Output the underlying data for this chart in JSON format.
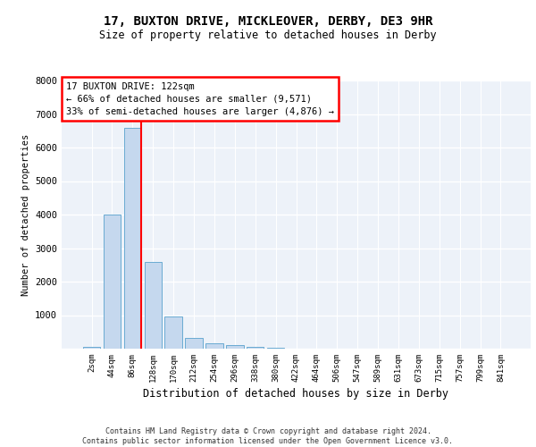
{
  "title1": "17, BUXTON DRIVE, MICKLEOVER, DERBY, DE3 9HR",
  "title2": "Size of property relative to detached houses in Derby",
  "xlabel": "Distribution of detached houses by size in Derby",
  "ylabel": "Number of detached properties",
  "bar_labels": [
    "2sqm",
    "44sqm",
    "86sqm",
    "128sqm",
    "170sqm",
    "212sqm",
    "254sqm",
    "296sqm",
    "338sqm",
    "380sqm",
    "422sqm",
    "464sqm",
    "506sqm",
    "547sqm",
    "589sqm",
    "631sqm",
    "673sqm",
    "715sqm",
    "757sqm",
    "799sqm",
    "841sqm"
  ],
  "bar_values": [
    60,
    4000,
    6600,
    2600,
    950,
    320,
    150,
    100,
    50,
    20,
    10,
    5,
    3,
    2,
    1,
    1,
    0,
    0,
    0,
    0,
    0
  ],
  "bar_color": "#c5d8ee",
  "bar_edge_color": "#6aabd2",
  "vline_color": "red",
  "vline_x": 2.4,
  "annotation_text": "17 BUXTON DRIVE: 122sqm\n← 66% of detached houses are smaller (9,571)\n33% of semi-detached houses are larger (4,876) →",
  "annotation_box_color": "white",
  "annotation_box_edge": "red",
  "ylim": [
    0,
    8000
  ],
  "yticks": [
    0,
    1000,
    2000,
    3000,
    4000,
    5000,
    6000,
    7000,
    8000
  ],
  "footer_text": "Contains HM Land Registry data © Crown copyright and database right 2024.\nContains public sector information licensed under the Open Government Licence v3.0.",
  "bg_color": "#edf2f9",
  "grid_color": "white"
}
